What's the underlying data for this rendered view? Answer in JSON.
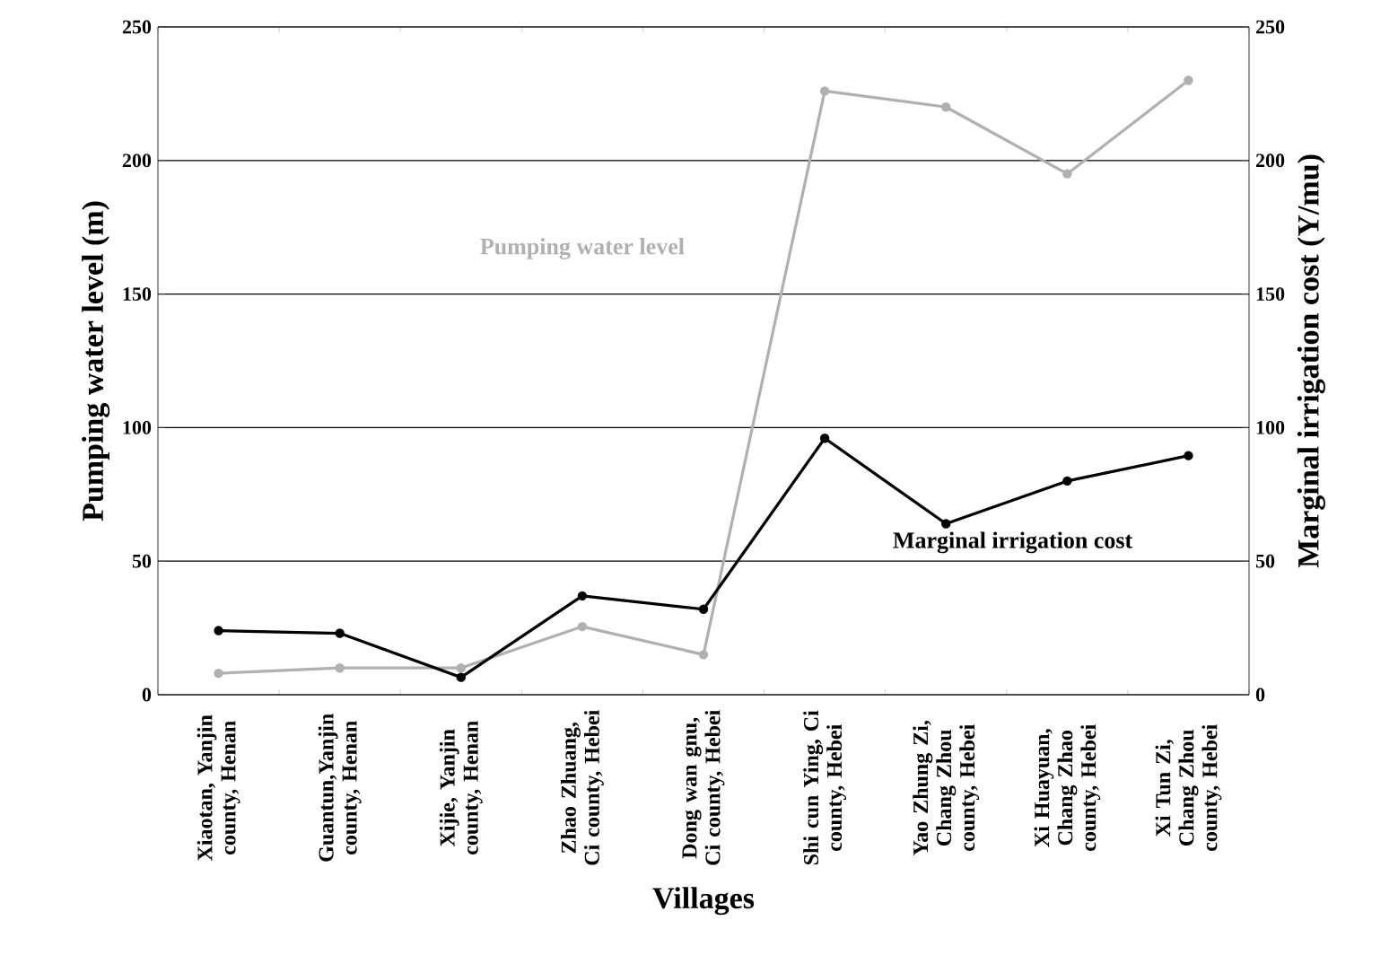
{
  "chart_data": {
    "type": "line",
    "xlabel": "Villages",
    "ylabel": "Pumping water level (m)",
    "y2label": "Marginal irrigation cost (Y/mu)",
    "categories": [
      "Xiaotan, Yanjin county, Henan",
      "Guantun,Yanjin county, Henan",
      "Xijie, Yanjin county, Henan",
      "Zhao Zhuang, Ci county, Hebei",
      "Dong wan gnu, Ci county, Hebei",
      "Shi cun Ying, Ci county, Hebei",
      "Yao Zhung Zi, Chang Zhou county, Hebei",
      "Xi Huayuan, Chang Zhao county, Hebei",
      "Xi Tun Zi, Chang Zhou county, Hebei"
    ],
    "series": [
      {
        "name": "Pumping water level",
        "color": "#b0b0b0",
        "values": [
          8,
          10,
          10,
          25.5,
          15,
          226,
          220,
          195,
          230
        ]
      },
      {
        "name": "Marginal irrigation cost",
        "color": "#000000",
        "axis": "y2",
        "values": [
          24,
          23,
          6.5,
          37,
          32,
          96,
          64,
          80,
          89.5
        ]
      }
    ],
    "ylim": [
      0,
      250
    ],
    "yticks": [
      0,
      50,
      100,
      150,
      200,
      250
    ],
    "y2lim": [
      0,
      250
    ],
    "y2ticks": [
      0,
      50,
      100,
      150,
      200,
      250
    ],
    "grid": "y",
    "marker": "circle",
    "line_style": "solid"
  }
}
